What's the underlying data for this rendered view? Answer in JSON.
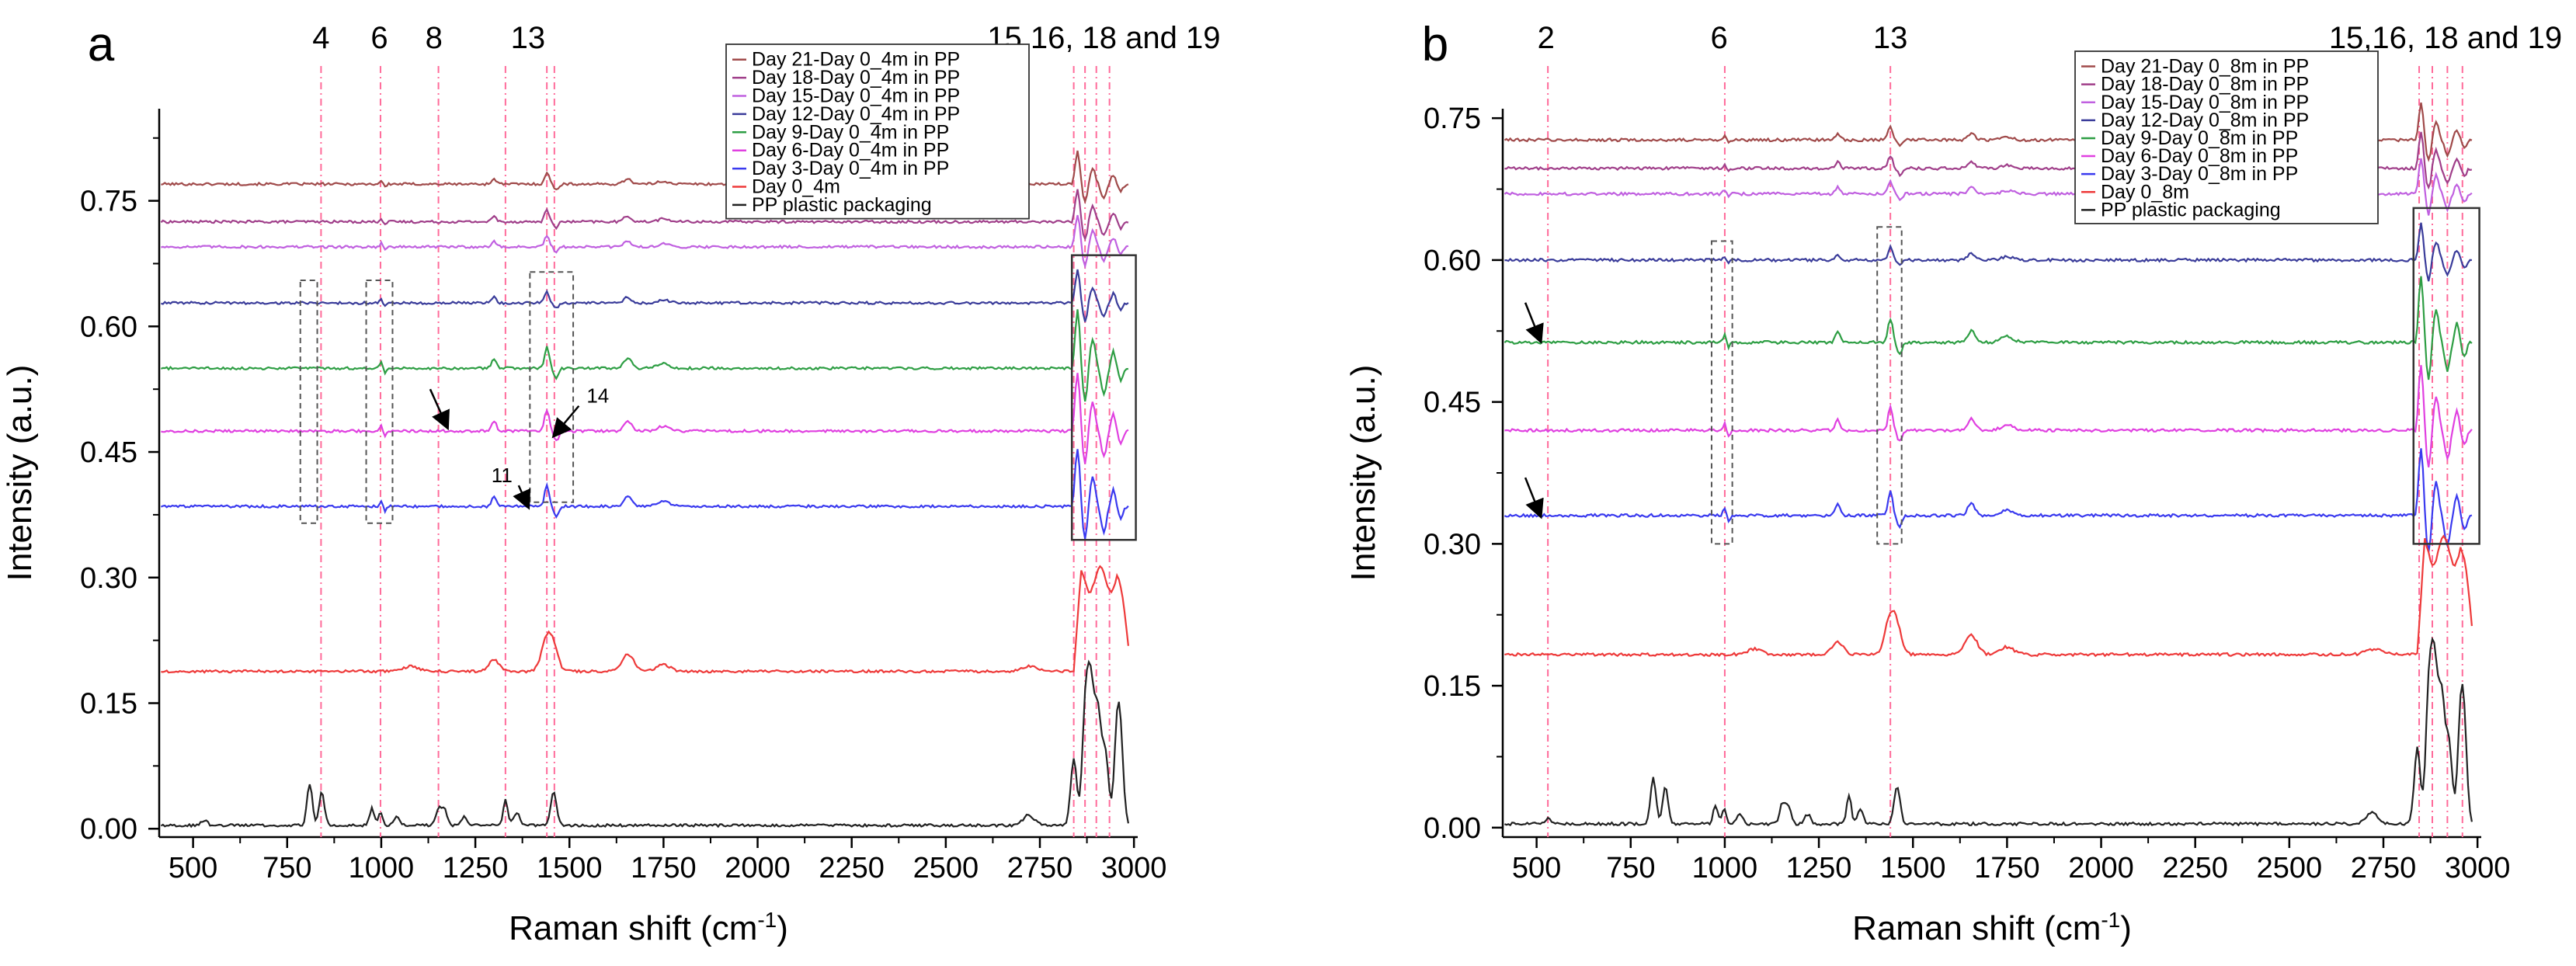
{
  "chart_data": [
    {
      "panel": "a",
      "type": "line",
      "xlabel": "Raman shift (cm",
      "xlabel_sup": "-1",
      "xlabel_close": ")",
      "ylabel": "Intensity (a.u.)",
      "xlim": [
        410,
        3010
      ],
      "ylim": [
        -0.01,
        0.86
      ],
      "xticks": [
        500,
        750,
        1000,
        1250,
        1500,
        1750,
        2000,
        2250,
        2500,
        2750,
        3000
      ],
      "xtick_labels": [
        "500",
        "750",
        "1000",
        "1250",
        "1500",
        "1750",
        "2000",
        "2250",
        "2500",
        "2750",
        "3000"
      ],
      "yticks": [
        0.0,
        0.15,
        0.3,
        0.45,
        0.6,
        0.75
      ],
      "ytick_labels": [
        "0.00",
        "0.15",
        "0.30",
        "0.45",
        "0.60",
        "0.75"
      ],
      "band_markers": [
        {
          "label": "4",
          "x": 840,
          "lines": [
            840
          ]
        },
        {
          "label": "6",
          "x": 995,
          "lines": [
            998
          ]
        },
        {
          "label": "8",
          "x": 1140,
          "lines": [
            1152
          ]
        },
        {
          "label": "13",
          "x": 1390,
          "lines": [
            1330,
            1440,
            1460
          ]
        },
        {
          "label": "15,16, 18 and 19",
          "x": 2920,
          "lines": [
            2840,
            2870,
            2900,
            2935
          ]
        }
      ],
      "dashed_boxes": [
        {
          "x": [
            785,
            830
          ],
          "y": [
            0.365,
            0.655
          ]
        },
        {
          "x": [
            960,
            1030
          ],
          "y": [
            0.365,
            0.655
          ]
        },
        {
          "x": [
            1395,
            1510
          ],
          "y": [
            0.39,
            0.665
          ]
        }
      ],
      "solid_boxes": [
        {
          "x": [
            2835,
            3005
          ],
          "y": [
            0.345,
            0.685
          ]
        }
      ],
      "arrows": [
        {
          "label": "",
          "from": [
            1130,
            0.525
          ],
          "to": [
            1175,
            0.48
          ]
        },
        {
          "label": "14",
          "from": [
            1525,
            0.505
          ],
          "to": [
            1460,
            0.47
          ]
        },
        {
          "label": "11",
          "from": [
            1365,
            0.41
          ],
          "to": [
            1390,
            0.385
          ]
        }
      ],
      "series": [
        {
          "name": "Day 21-Day 0_4m in PP",
          "color": "#a04a4a",
          "baseline": 0.77
        },
        {
          "name": "Day 18-Day 0_4m in PP",
          "color": "#a03f8a",
          "baseline": 0.725
        },
        {
          "name": "Day 15-Day 0_4m in PP",
          "color": "#c060e0",
          "baseline": 0.695
        },
        {
          "name": "Day 12-Day 0_4m in PP",
          "color": "#3a3c9a",
          "baseline": 0.628
        },
        {
          "name": "Day 9-Day 0_4m in PP",
          "color": "#2e9e44",
          "baseline": 0.55
        },
        {
          "name": "Day 6-Day 0_4m in PP",
          "color": "#e040e0",
          "baseline": 0.475
        },
        {
          "name": "Day 3-Day 0_4m in PP",
          "color": "#3a3aef",
          "baseline": 0.385
        },
        {
          "name": "Day 0_4m",
          "color": "#ee3a3a",
          "baseline": 0.188
        },
        {
          "name": "PP plastic packaging",
          "color": "#222222",
          "baseline": 0.004
        }
      ]
    },
    {
      "panel": "b",
      "type": "line",
      "xlabel": "Raman shift (cm",
      "xlabel_sup": "-1",
      "xlabel_close": ")",
      "ylabel": "Intensity (a.u.)",
      "xlim": [
        410,
        3010
      ],
      "ylim": [
        -0.01,
        0.76
      ],
      "xticks": [
        500,
        750,
        1000,
        1250,
        1500,
        1750,
        2000,
        2250,
        2500,
        2750,
        3000
      ],
      "xtick_labels": [
        "500",
        "750",
        "1000",
        "1250",
        "1500",
        "1750",
        "2000",
        "2250",
        "2500",
        "2750",
        "3000"
      ],
      "yticks": [
        0.0,
        0.15,
        0.3,
        0.45,
        0.6,
        0.75
      ],
      "ytick_labels": [
        "0.00",
        "0.15",
        "0.30",
        "0.45",
        "0.60",
        "0.75"
      ],
      "band_markers": [
        {
          "label": "2",
          "x": 525,
          "lines": [
            530
          ]
        },
        {
          "label": "6",
          "x": 985,
          "lines": [
            1000
          ]
        },
        {
          "label": "13",
          "x": 1440,
          "lines": [
            1440
          ]
        },
        {
          "label": "15,16, 18 and 19",
          "x": 2915,
          "lines": [
            2845,
            2880,
            2920,
            2960
          ]
        }
      ],
      "dashed_boxes": [
        {
          "x": [
            965,
            1020
          ],
          "y": [
            0.3,
            0.62
          ]
        },
        {
          "x": [
            1405,
            1470
          ],
          "y": [
            0.3,
            0.635
          ]
        }
      ],
      "solid_boxes": [
        {
          "x": [
            2830,
            3005
          ],
          "y": [
            0.3,
            0.655
          ]
        }
      ],
      "arrows": [
        {
          "label": "",
          "from": [
            470,
            0.555
          ],
          "to": [
            510,
            0.515
          ]
        },
        {
          "label": "",
          "from": [
            470,
            0.37
          ],
          "to": [
            510,
            0.33
          ]
        }
      ],
      "series": [
        {
          "name": "Day 21-Day 0_8m in PP",
          "color": "#a04a4a",
          "baseline": 0.727
        },
        {
          "name": "Day 18-Day 0_8m in PP",
          "color": "#a03f8a",
          "baseline": 0.697
        },
        {
          "name": "Day 15-Day 0_8m in PP",
          "color": "#c060e0",
          "baseline": 0.67
        },
        {
          "name": "Day 12-Day 0_8m in PP",
          "color": "#3a3c9a",
          "baseline": 0.6
        },
        {
          "name": "Day 9-Day 0_8m in PP",
          "color": "#2e9e44",
          "baseline": 0.513
        },
        {
          "name": "Day 6-Day 0_8m in PP",
          "color": "#e040e0",
          "baseline": 0.42
        },
        {
          "name": "Day 3-Day 0_8m in PP",
          "color": "#3a3aef",
          "baseline": 0.33
        },
        {
          "name": "Day 0_8m",
          "color": "#ee3a3a",
          "baseline": 0.183
        },
        {
          "name": "PP plastic packaging",
          "color": "#222222",
          "baseline": 0.004
        }
      ]
    }
  ]
}
